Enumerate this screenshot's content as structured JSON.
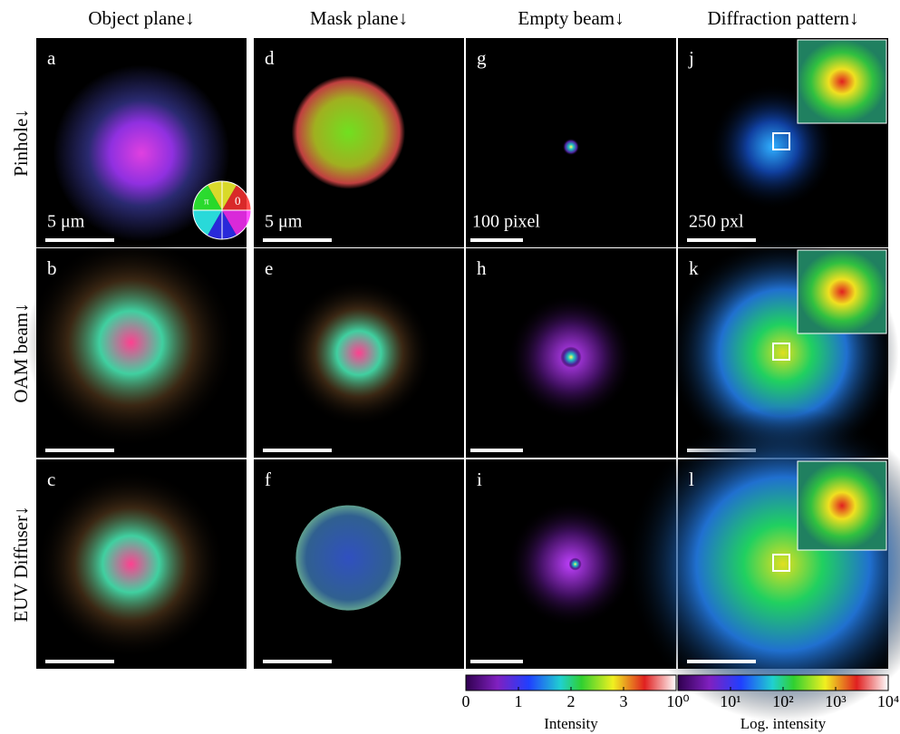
{
  "columns": [
    "Object plane↓",
    "Mask plane↓",
    "Empty beam↓",
    "Diffraction pattern↓"
  ],
  "rows": [
    "Pinhole↓",
    "OAM beam↓",
    "EUV Diffuser↓"
  ],
  "panels": [
    {
      "letter": "a",
      "scale_label": "5 μm"
    },
    {
      "letter": "d",
      "scale_label": "5 μm"
    },
    {
      "letter": "g",
      "scale_label": "100 pixel"
    },
    {
      "letter": "j",
      "scale_label": "250 pxl"
    },
    {
      "letter": "b"
    },
    {
      "letter": "e"
    },
    {
      "letter": "h"
    },
    {
      "letter": "k"
    },
    {
      "letter": "c"
    },
    {
      "letter": "f"
    },
    {
      "letter": "i"
    },
    {
      "letter": "l"
    }
  ],
  "phase_wheel": {
    "left": "π",
    "right": "0"
  },
  "colorbars": [
    {
      "title": "Intensity",
      "lim": [
        0,
        4
      ],
      "ticks": [
        0,
        1,
        2,
        3
      ]
    },
    {
      "title": "Log. intensity",
      "lim": [
        0,
        4
      ],
      "ticks": [
        {
          "value": 0,
          "label": "10⁰"
        },
        {
          "value": 1,
          "label": "10¹"
        },
        {
          "value": 2,
          "label": "10²"
        },
        {
          "value": 3,
          "label": "10³"
        },
        {
          "value": 4,
          "label": "10⁴"
        }
      ]
    }
  ]
}
